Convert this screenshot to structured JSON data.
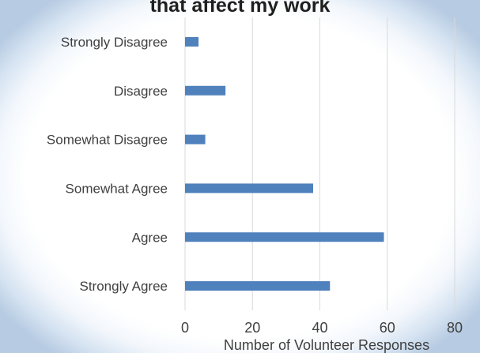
{
  "chart_data": {
    "type": "bar",
    "orientation": "horizontal",
    "title": "that affect my work",
    "categories": [
      "Strongly Disagree",
      "Disagree",
      "Somewhat Disagree",
      "Somewhat Agree",
      "Agree",
      "Strongly Agree"
    ],
    "values": [
      4,
      12,
      6,
      38,
      59,
      43
    ],
    "xlabel": "Number of Volunteer Responses",
    "ylabel": "",
    "xlim": [
      0,
      80
    ],
    "xticks": [
      "0",
      "20",
      "40",
      "60",
      "80"
    ],
    "grid": "vertical",
    "bar_color": "#4f81bd"
  }
}
